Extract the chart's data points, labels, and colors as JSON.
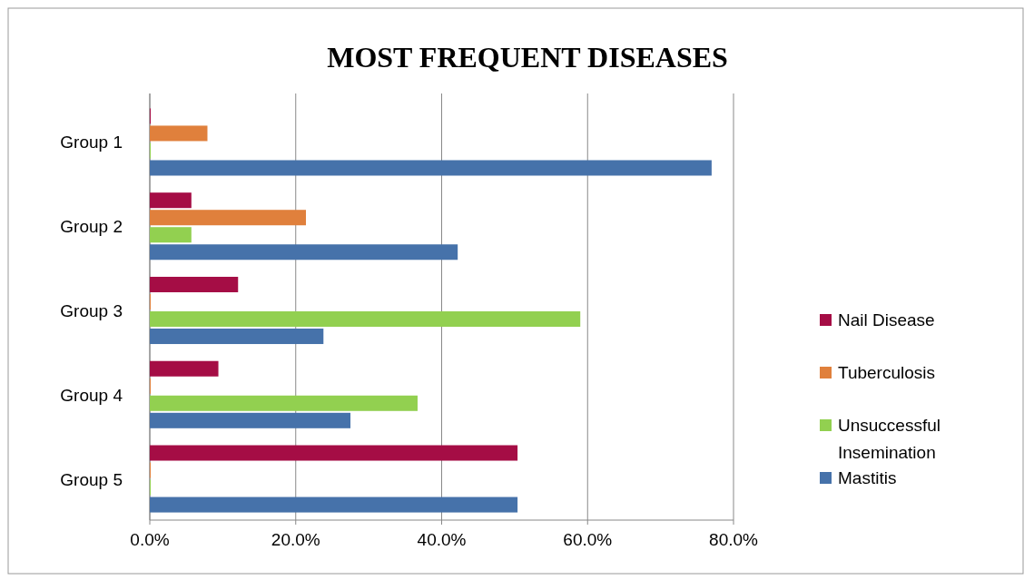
{
  "chart_data": {
    "type": "bar",
    "orientation": "horizontal",
    "title": "MOST FREQUENT DISEASES",
    "categories": [
      "Group 1",
      "Group 2",
      "Group 3",
      "Group 4",
      "Group 5"
    ],
    "series": [
      {
        "name": "Nail Disease",
        "color": "#a50d45",
        "values": [
          0,
          5.7,
          12.1,
          9.4,
          50.4
        ]
      },
      {
        "name": "Tuberculosis",
        "color": "#e0803c",
        "values": [
          7.9,
          21.4,
          0,
          0,
          0
        ]
      },
      {
        "name": "Unsuccessful Insemination",
        "color": "#92d050",
        "values": [
          0,
          5.7,
          59,
          36.7,
          0
        ]
      },
      {
        "name": "Mastitis",
        "color": "#4672aa",
        "values": [
          77,
          42.2,
          23.8,
          27.5,
          50.4
        ]
      }
    ],
    "xlim": [
      0,
      80
    ],
    "xticks": [
      {
        "value": 0,
        "label": "0.0%"
      },
      {
        "value": 20,
        "label": "20.0%"
      },
      {
        "value": 40,
        "label": "40.0%"
      },
      {
        "value": 60,
        "label": "60.0%"
      },
      {
        "value": 80,
        "label": "80.0%"
      }
    ],
    "grid": "x",
    "legend": "right"
  }
}
